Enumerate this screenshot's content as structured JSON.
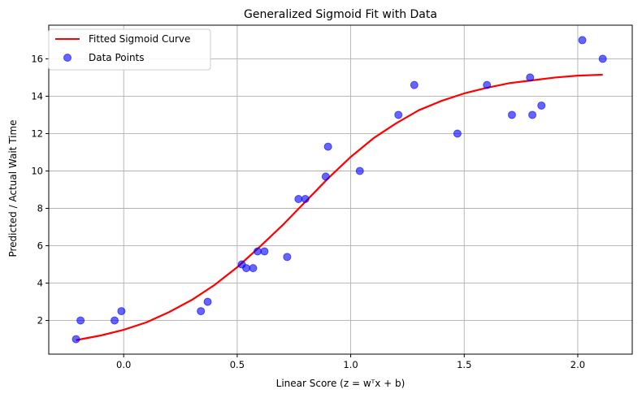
{
  "chart_data": {
    "type": "scatter",
    "title": "Generalized Sigmoid Fit with Data",
    "xlabel": "Linear Score (z = wᵀx + b)",
    "ylabel": "Predicted / Actual Wait Time",
    "xlim": [
      -0.33,
      2.24
    ],
    "ylim": [
      0.2,
      17.8
    ],
    "xticks": [
      0.0,
      0.5,
      1.0,
      1.5,
      2.0
    ],
    "xtick_labels": [
      "0.0",
      "0.5",
      "1.0",
      "1.5",
      "2.0"
    ],
    "yticks": [
      2,
      4,
      6,
      8,
      10,
      12,
      14,
      16
    ],
    "ytick_labels": [
      "2",
      "4",
      "6",
      "8",
      "10",
      "12",
      "14",
      "16"
    ],
    "grid": true,
    "legend_position": "top-left",
    "series": [
      {
        "name": "Fitted Sigmoid Curve",
        "kind": "line",
        "color": "#ff0000",
        "x": [
          -0.21,
          -0.1,
          0.0,
          0.1,
          0.2,
          0.3,
          0.4,
          0.5,
          0.6,
          0.7,
          0.8,
          0.9,
          1.0,
          1.1,
          1.2,
          1.3,
          1.4,
          1.5,
          1.6,
          1.7,
          1.8,
          1.9,
          2.0,
          2.11
        ],
        "y": [
          0.95,
          1.2,
          1.5,
          1.9,
          2.45,
          3.1,
          3.9,
          4.85,
          5.95,
          7.1,
          8.35,
          9.6,
          10.75,
          11.75,
          12.55,
          13.25,
          13.75,
          14.15,
          14.45,
          14.7,
          14.85,
          15.0,
          15.1,
          15.15
        ]
      },
      {
        "name": "Data Points",
        "kind": "scatter",
        "color": "#0000ff",
        "x": [
          -0.21,
          -0.19,
          -0.04,
          -0.01,
          0.34,
          0.37,
          0.52,
          0.54,
          0.57,
          0.59,
          0.62,
          0.72,
          0.77,
          0.8,
          0.89,
          0.9,
          1.04,
          1.21,
          1.28,
          1.47,
          1.6,
          1.71,
          1.79,
          1.8,
          1.84,
          2.02,
          2.11
        ],
        "y": [
          1.0,
          2.0,
          2.0,
          2.5,
          2.5,
          3.0,
          5.0,
          4.8,
          4.8,
          5.7,
          5.7,
          5.4,
          8.5,
          8.5,
          9.7,
          11.3,
          10.0,
          13.0,
          14.6,
          12.0,
          14.6,
          13.0,
          15.0,
          13.0,
          13.5,
          17.0,
          16.0
        ]
      }
    ]
  }
}
